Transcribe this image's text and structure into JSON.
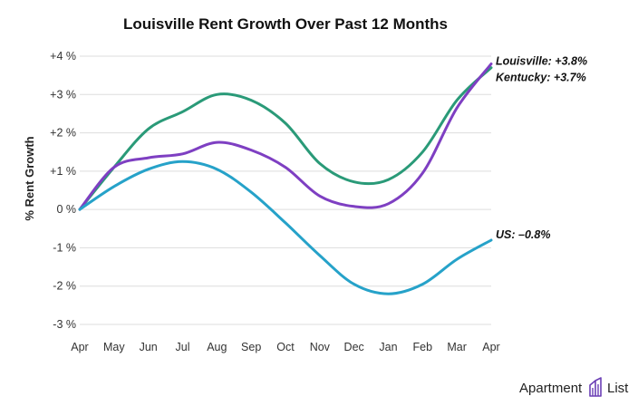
{
  "chart_data": {
    "type": "line",
    "title": "Louisville Rent Growth Over Past 12 Months",
    "xlabel": "",
    "ylabel": "% Rent Growth",
    "ylim": [
      -3,
      4
    ],
    "yticks": [
      4,
      3,
      2,
      1,
      0,
      -1,
      -2,
      -3
    ],
    "ytick_labels": [
      "+4 %",
      "+3 %",
      "+2 %",
      "+1 %",
      "0 %",
      "-1 %",
      "-2 %",
      "-3 %"
    ],
    "grid": true,
    "categories": [
      "Apr",
      "May",
      "Jun",
      "Jul",
      "Aug",
      "Sep",
      "Oct",
      "Nov",
      "Dec",
      "Jan",
      "Feb",
      "Mar",
      "Apr"
    ],
    "series": [
      {
        "name": "Kentucky",
        "color": "#2a9a78",
        "values": [
          0.0,
          1.1,
          2.1,
          2.55,
          3.0,
          2.85,
          2.25,
          1.2,
          0.72,
          0.78,
          1.5,
          2.85,
          3.7
        ],
        "annotation": "Kentucky: +3.7%"
      },
      {
        "name": "Louisville",
        "color": "#7e3fc2",
        "values": [
          0.0,
          1.1,
          1.35,
          1.45,
          1.75,
          1.55,
          1.1,
          0.35,
          0.08,
          0.15,
          0.95,
          2.65,
          3.8
        ],
        "annotation": "Louisville: +3.8%"
      },
      {
        "name": "US",
        "color": "#26a2c9",
        "values": [
          0.0,
          0.6,
          1.05,
          1.25,
          1.05,
          0.45,
          -0.35,
          -1.2,
          -1.95,
          -2.2,
          -1.95,
          -1.3,
          -0.8
        ],
        "annotation": "US: –0.8%"
      }
    ]
  },
  "brand": {
    "name_part1": "Apartment",
    "name_part2": "List",
    "logo_icon": "apartment-list-logo-icon"
  }
}
